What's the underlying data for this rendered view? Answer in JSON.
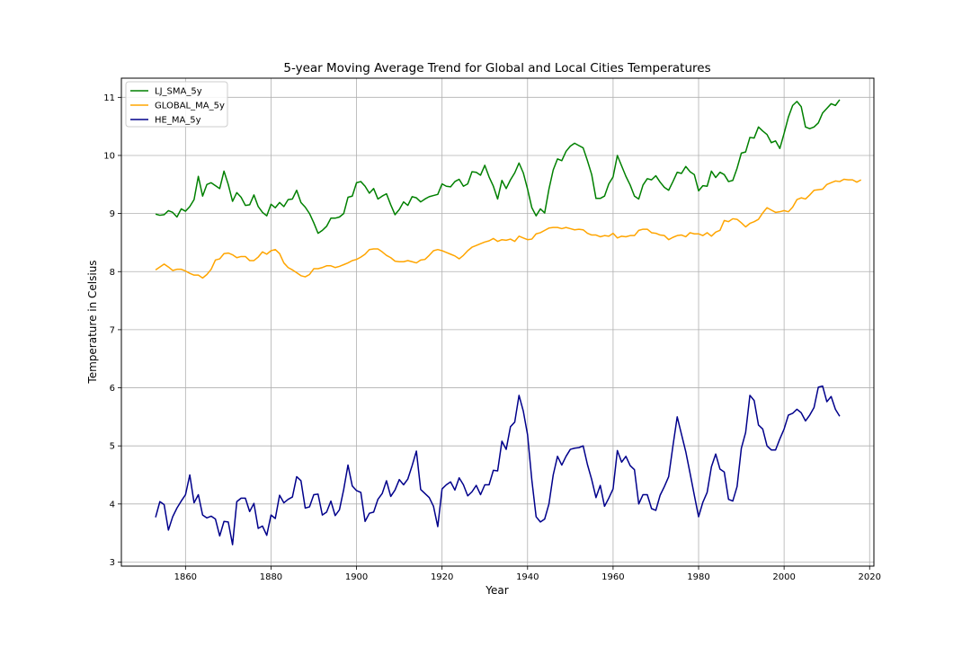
{
  "chart_data": {
    "type": "line",
    "title": "5-year Moving Average Trend for Global and Local Cities Temperatures",
    "xlabel": "Year",
    "ylabel": "Temperature in Celsius",
    "xlim": [
      1845,
      2021
    ],
    "ylim": [
      2.93,
      11.33
    ],
    "x_ticks": [
      1860,
      1880,
      1900,
      1920,
      1940,
      1960,
      1980,
      2000,
      2020
    ],
    "y_ticks": [
      3,
      4,
      5,
      6,
      7,
      8,
      9,
      10,
      11
    ],
    "grid": true,
    "legend_position": "top-left",
    "x_start": 1853,
    "series": [
      {
        "name": "LJ_SMA_5y",
        "color": "#008000",
        "values": [
          8.99,
          8.97,
          8.98,
          9.05,
          9.02,
          8.94,
          9.08,
          9.04,
          9.12,
          9.24,
          9.64,
          9.3,
          9.5,
          9.53,
          9.48,
          9.43,
          9.73,
          9.5,
          9.21,
          9.36,
          9.28,
          9.14,
          9.15,
          9.32,
          9.12,
          9.02,
          8.96,
          9.16,
          9.1,
          9.19,
          9.12,
          9.24,
          9.25,
          9.4,
          9.19,
          9.11,
          9.0,
          8.84,
          8.66,
          8.71,
          8.78,
          8.92,
          8.92,
          8.94,
          9.0,
          9.28,
          9.3,
          9.53,
          9.55,
          9.47,
          9.35,
          9.43,
          9.25,
          9.3,
          9.34,
          9.15,
          8.98,
          9.07,
          9.2,
          9.14,
          9.29,
          9.27,
          9.2,
          9.25,
          9.29,
          9.31,
          9.33,
          9.51,
          9.47,
          9.46,
          9.55,
          9.59,
          9.47,
          9.51,
          9.72,
          9.71,
          9.66,
          9.83,
          9.63,
          9.47,
          9.25,
          9.57,
          9.43,
          9.58,
          9.7,
          9.87,
          9.7,
          9.42,
          9.1,
          8.96,
          9.08,
          9.01,
          9.42,
          9.75,
          9.94,
          9.91,
          10.07,
          10.16,
          10.21,
          10.17,
          10.13,
          9.91,
          9.67,
          9.26,
          9.26,
          9.3,
          9.51,
          9.63,
          10.0,
          9.82,
          9.64,
          9.49,
          9.3,
          9.25,
          9.49,
          9.6,
          9.58,
          9.65,
          9.54,
          9.45,
          9.4,
          9.55,
          9.71,
          9.69,
          9.81,
          9.72,
          9.67,
          9.39,
          9.48,
          9.47,
          9.73,
          9.62,
          9.71,
          9.67,
          9.55,
          9.57,
          9.78,
          10.04,
          10.06,
          10.31,
          10.3,
          10.49,
          10.42,
          10.36,
          10.22,
          10.25,
          10.12,
          10.38,
          10.66,
          10.86,
          10.93,
          10.84,
          10.49,
          10.46,
          10.49,
          10.56,
          10.73,
          10.81,
          10.89,
          10.86,
          10.96
        ]
      },
      {
        "name": "GLOBAL_MA_5y",
        "color": "#ffa500",
        "values": [
          8.03,
          8.08,
          8.13,
          8.08,
          8.02,
          8.04,
          8.04,
          8.01,
          7.97,
          7.94,
          7.94,
          7.89,
          7.95,
          8.04,
          8.2,
          8.22,
          8.31,
          8.32,
          8.29,
          8.24,
          8.26,
          8.26,
          8.19,
          8.19,
          8.25,
          8.34,
          8.3,
          8.36,
          8.38,
          8.31,
          8.15,
          8.07,
          8.03,
          7.98,
          7.93,
          7.91,
          7.95,
          8.05,
          8.05,
          8.07,
          8.1,
          8.1,
          8.07,
          8.09,
          8.12,
          8.15,
          8.19,
          8.21,
          8.25,
          8.3,
          8.38,
          8.39,
          8.39,
          8.34,
          8.28,
          8.24,
          8.18,
          8.17,
          8.17,
          8.19,
          8.17,
          8.15,
          8.2,
          8.21,
          8.28,
          8.36,
          8.38,
          8.36,
          8.33,
          8.3,
          8.27,
          8.22,
          8.28,
          8.36,
          8.42,
          8.45,
          8.48,
          8.51,
          8.53,
          8.57,
          8.52,
          8.55,
          8.54,
          8.56,
          8.52,
          8.61,
          8.58,
          8.55,
          8.56,
          8.65,
          8.67,
          8.71,
          8.75,
          8.76,
          8.76,
          8.74,
          8.76,
          8.74,
          8.72,
          8.73,
          8.72,
          8.66,
          8.63,
          8.63,
          8.6,
          8.62,
          8.61,
          8.66,
          8.58,
          8.61,
          8.6,
          8.62,
          8.62,
          8.71,
          8.73,
          8.73,
          8.67,
          8.66,
          8.63,
          8.62,
          8.55,
          8.59,
          8.62,
          8.63,
          8.6,
          8.67,
          8.65,
          8.65,
          8.62,
          8.67,
          8.61,
          8.68,
          8.71,
          8.88,
          8.86,
          8.91,
          8.9,
          8.84,
          8.77,
          8.83,
          8.86,
          8.9,
          9.01,
          9.1,
          9.06,
          9.02,
          9.03,
          9.05,
          9.03,
          9.11,
          9.24,
          9.27,
          9.25,
          9.32,
          9.4,
          9.41,
          9.42,
          9.5,
          9.53,
          9.56,
          9.55,
          9.59,
          9.58,
          9.58,
          9.54,
          9.58
        ]
      },
      {
        "name": "HE_MA_5y",
        "color": "#00008b",
        "values": [
          3.77,
          4.04,
          3.99,
          3.55,
          3.78,
          3.93,
          4.05,
          4.16,
          4.5,
          4.02,
          4.16,
          3.81,
          3.76,
          3.79,
          3.74,
          3.45,
          3.7,
          3.69,
          3.3,
          4.04,
          4.1,
          4.1,
          3.87,
          4.01,
          3.58,
          3.62,
          3.46,
          3.81,
          3.75,
          4.15,
          4.02,
          4.08,
          4.12,
          4.47,
          4.4,
          3.93,
          3.95,
          4.16,
          4.17,
          3.81,
          3.86,
          4.05,
          3.8,
          3.9,
          4.25,
          4.67,
          4.31,
          4.23,
          4.2,
          3.7,
          3.84,
          3.86,
          4.08,
          4.18,
          4.4,
          4.13,
          4.24,
          4.42,
          4.33,
          4.43,
          4.66,
          4.91,
          4.25,
          4.18,
          4.11,
          3.96,
          3.61,
          4.26,
          4.33,
          4.38,
          4.24,
          4.45,
          4.33,
          4.14,
          4.21,
          4.32,
          4.16,
          4.33,
          4.33,
          4.58,
          4.57,
          5.08,
          4.94,
          5.33,
          5.41,
          5.87,
          5.6,
          5.19,
          4.41,
          3.78,
          3.69,
          3.74,
          4.0,
          4.5,
          4.82,
          4.67,
          4.82,
          4.94,
          4.96,
          4.97,
          5.0,
          4.68,
          4.42,
          4.11,
          4.32,
          3.96,
          4.1,
          4.26,
          4.92,
          4.72,
          4.82,
          4.66,
          4.59,
          4.0,
          4.16,
          4.16,
          3.92,
          3.89,
          4.15,
          4.3,
          4.47,
          5.0,
          5.5,
          5.2,
          4.9,
          4.53,
          4.15,
          3.78,
          4.03,
          4.2,
          4.64,
          4.86,
          4.6,
          4.55,
          4.08,
          4.05,
          4.3,
          4.96,
          5.23,
          5.87,
          5.78,
          5.36,
          5.29,
          5.0,
          4.93,
          4.93,
          5.12,
          5.29,
          5.53,
          5.56,
          5.63,
          5.57,
          5.43,
          5.53,
          5.66,
          6.01,
          6.03,
          5.76,
          5.85,
          5.63,
          5.51
        ]
      }
    ]
  }
}
